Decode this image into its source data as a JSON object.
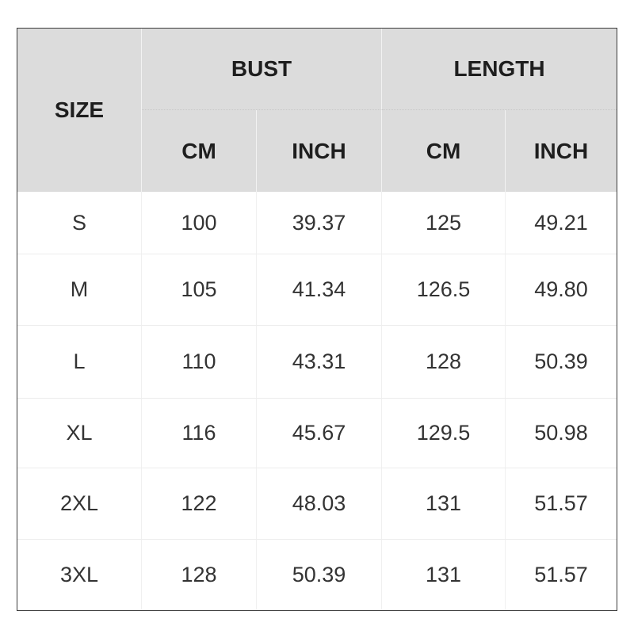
{
  "table": {
    "headers": {
      "size": "SIZE",
      "bust": "BUST",
      "length": "LENGTH",
      "bust_cm": "CM",
      "bust_inch": "INCH",
      "length_cm": "CM",
      "length_inch": "INCH"
    },
    "rows": [
      [
        "S",
        "100",
        "39.37",
        "125",
        "49.21"
      ],
      [
        "M",
        "105",
        "41.34",
        "126.5",
        "49.80"
      ],
      [
        "L",
        "110",
        "43.31",
        "128",
        "50.39"
      ],
      [
        "XL",
        "116",
        "45.67",
        "129.5",
        "50.98"
      ],
      [
        "2XL",
        "122",
        "48.03",
        "131",
        "51.57"
      ],
      [
        "3XL",
        "128",
        "50.39",
        "131",
        "51.57"
      ]
    ],
    "header_bg": "#dcdcdc",
    "border_color": "#3a3a3a"
  }
}
